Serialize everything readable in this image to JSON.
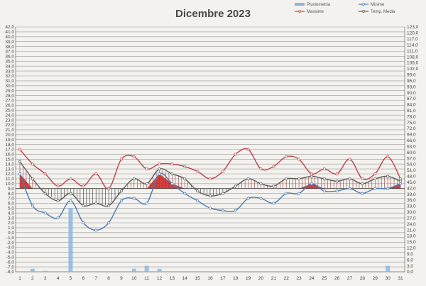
{
  "chart_data": {
    "type": "line",
    "title": "Dicembre 2023",
    "x": [
      1,
      2,
      3,
      4,
      5,
      6,
      7,
      8,
      9,
      10,
      11,
      12,
      13,
      14,
      15,
      16,
      17,
      18,
      19,
      20,
      21,
      22,
      23,
      24,
      25,
      26,
      27,
      28,
      29,
      30,
      31
    ],
    "x_tick_labels": [
      "1",
      "2",
      "3",
      "4",
      "5",
      "6",
      "7",
      "8",
      "9",
      "10",
      "11",
      "12",
      "13",
      "14",
      "15",
      "16",
      "17",
      "18",
      "19",
      "20",
      "21",
      "22",
      "23",
      "24",
      "25",
      "26",
      "27",
      "28",
      "29",
      "30",
      "31"
    ],
    "y_left_range": [
      -8,
      42
    ],
    "y_left_tick_labels": [
      "42,0",
      "41,0",
      "40,0",
      "39,0",
      "38,0",
      "37,0",
      "36,0",
      "35,0",
      "34,0",
      "33,0",
      "32,0",
      "31,0",
      "30,0",
      "29,0",
      "28,0",
      "27,0",
      "26,0",
      "25,0",
      "24,0",
      "23,0",
      "22,0",
      "21,0",
      "20,0",
      "19,0",
      "18,0",
      "17,0",
      "16,0",
      "15,0",
      "14,0",
      "13,0",
      "12,0",
      "11,0",
      "10,0",
      "9,0",
      "8,0",
      "7,0",
      "6,0",
      "5,0",
      "4,0",
      "3,0",
      "2,0",
      "1,0",
      "0,0",
      "-1,0",
      "-2,0",
      "-3,0",
      "-4,0",
      "-5,0",
      "-6,0",
      "-7,0",
      "-8,0"
    ],
    "y_right_range": [
      0,
      123
    ],
    "y_right_tick_labels": [
      "123,0",
      "120,0",
      "117,0",
      "114,0",
      "111,0",
      "108,0",
      "105,0",
      "102,0",
      "99,0",
      "96,0",
      "93,0",
      "90,0",
      "87,0",
      "84,0",
      "81,0",
      "78,0",
      "75,0",
      "72,0",
      "69,0",
      "66,0",
      "63,0",
      "60,0",
      "57,0",
      "54,0",
      "51,0",
      "48,0",
      "45,0",
      "42,0",
      "39,0",
      "36,0",
      "33,0",
      "30,0",
      "27,0",
      "24,0",
      "21,0",
      "18,0",
      "15,0",
      "12,0",
      "9,0",
      "6,0",
      "3,0",
      "0,0"
    ],
    "reference_value": 9,
    "grid": true,
    "legend_position": "top-right",
    "series": [
      {
        "name": "Pluviometria",
        "kind": "bar",
        "axis": "right",
        "color": "#8ab8de",
        "values": [
          0,
          1.5,
          0.5,
          0,
          32,
          0,
          0,
          0,
          0,
          1.5,
          3,
          1.5,
          0,
          0,
          0,
          0,
          0,
          0,
          0,
          0,
          0,
          0,
          0,
          0,
          0,
          0,
          0,
          0,
          0,
          3,
          0
        ]
      },
      {
        "name": "Minime",
        "kind": "line",
        "axis": "left",
        "color": "#4a7bb5",
        "values": [
          12,
          5.5,
          4,
          3,
          6.5,
          2,
          0.5,
          2,
          6.5,
          7,
          6,
          12,
          10,
          8,
          6.5,
          5,
          4.5,
          4.5,
          7,
          7,
          6,
          8,
          8,
          10,
          8.5,
          8.5,
          9,
          8,
          9,
          9,
          10
        ]
      },
      {
        "name": "Massime",
        "kind": "line",
        "axis": "left",
        "color": "#c0404a",
        "values": [
          17,
          14,
          12,
          9.5,
          11,
          9.5,
          12,
          9,
          15,
          15.5,
          13,
          14,
          14,
          13.5,
          12.5,
          11,
          12.5,
          16,
          17,
          13,
          13.5,
          15.5,
          15,
          12,
          13,
          12,
          15,
          11,
          12,
          15.5,
          11
        ]
      },
      {
        "name": "Temp. Media",
        "kind": "line",
        "axis": "left",
        "color": "#5a5a5a",
        "values": [
          14.5,
          11,
          8,
          6.5,
          8,
          5.5,
          6,
          5.5,
          8.5,
          11,
          10,
          13,
          12,
          11,
          8.5,
          7.5,
          8,
          9.5,
          11,
          10,
          9.5,
          11,
          11,
          11.5,
          11,
          10.5,
          11,
          10,
          11,
          11.5,
          10.5
        ]
      }
    ]
  }
}
